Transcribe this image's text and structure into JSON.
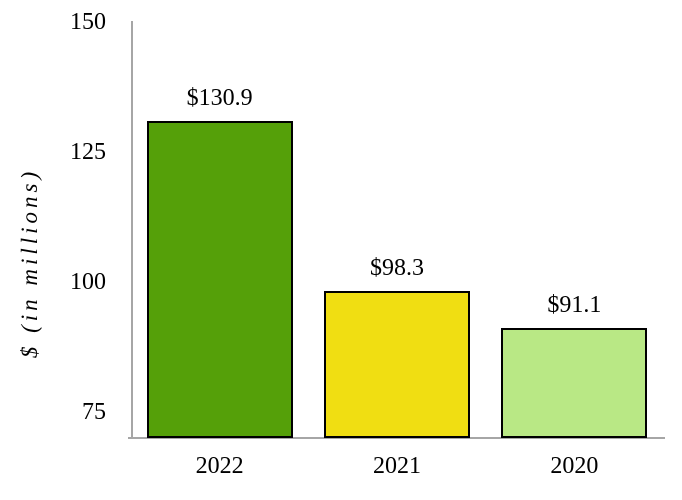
{
  "chart_data": {
    "type": "bar",
    "title": "",
    "ylabel": "$ (in millions)",
    "xlabel": "",
    "categories": [
      "2022",
      "2021",
      "2020"
    ],
    "values": [
      130.9,
      98.3,
      91.1
    ],
    "value_labels": [
      "$130.9",
      "$98.3",
      "$91.1"
    ],
    "yticks": [
      150,
      125,
      100,
      75
    ],
    "ylim": [
      70,
      150
    ],
    "grid": "off",
    "legend": "none",
    "bar_colors": [
      "#55a009",
      "#f0de12",
      "#b9e885"
    ],
    "bar_border_color": "#000000",
    "axis_color": "#a6a6a6",
    "text_color": "#000000"
  }
}
